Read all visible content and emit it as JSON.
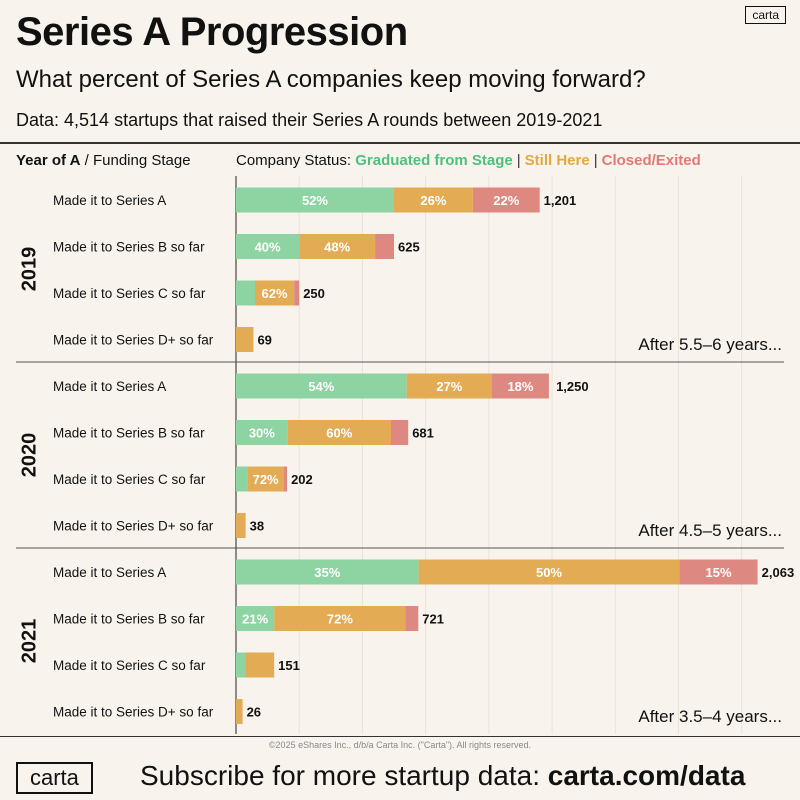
{
  "header": {
    "title": "Series A Progression",
    "subtitle": "What percent of Series A companies keep moving forward?",
    "data_note": "Data: 4,514 startups that raised their Series A rounds between 2019-2021",
    "logo_small": "carta",
    "col_year_bold": "Year of A",
    "col_year_rest": " / Funding Stage",
    "col_status_prefix": "Company Status:",
    "status_graduated": "Graduated from Stage",
    "status_still": "Still Here",
    "status_closed": "Closed/Exited",
    "separator": "|"
  },
  "footer": {
    "copyright": "©2025 eShares Inc., d/b/a Carta Inc. (\"Carta\"). All rights reserved.",
    "logo": "carta",
    "subscribe_prefix": "Subscribe for more startup data: ",
    "subscribe_link": "carta.com/data"
  },
  "colors": {
    "graduated": "#8ed3a2",
    "still": "#e2ab54",
    "closed": "#de8882",
    "grid": "#e9e2d6",
    "divider": "#555555",
    "axis": "#222222"
  },
  "chart_data": {
    "type": "bar",
    "orientation": "horizontal",
    "stacked": true,
    "series_names": [
      "Graduated from Stage",
      "Still Here",
      "Closed/Exited"
    ],
    "x_max": 2100,
    "groups": [
      {
        "year": "2019",
        "note": "After 5.5–6 years...",
        "rows": [
          {
            "label": "Made it to Series A",
            "total": 1201,
            "total_label": "1,201",
            "pct": [
              52,
              26,
              22
            ],
            "pct_labels": [
              "52%",
              "26%",
              "22%"
            ]
          },
          {
            "label": "Made it to Series B so far",
            "total": 625,
            "total_label": "625",
            "pct": [
              40,
              48,
              12
            ],
            "pct_labels": [
              "40%",
              "48%",
              ""
            ]
          },
          {
            "label": "Made it to Series C so far",
            "total": 250,
            "total_label": "250",
            "pct": [
              30,
              62,
              8
            ],
            "pct_labels": [
              "",
              "62%",
              ""
            ]
          },
          {
            "label": "Made it to Series D+ so far",
            "total": 69,
            "total_label": "69",
            "pct": [
              0,
              100,
              0
            ],
            "pct_labels": [
              "",
              "",
              ""
            ]
          }
        ]
      },
      {
        "year": "2020",
        "note": "After 4.5–5 years...",
        "rows": [
          {
            "label": "Made it to Series A",
            "total": 1250,
            "total_label": "1,250",
            "pct": [
              54,
              27,
              18
            ],
            "pct_labels": [
              "54%",
              "27%",
              "18%"
            ]
          },
          {
            "label": "Made it to Series B so far",
            "total": 681,
            "total_label": "681",
            "pct": [
              30,
              60,
              10
            ],
            "pct_labels": [
              "30%",
              "60%",
              ""
            ]
          },
          {
            "label": "Made it to Series C so far",
            "total": 202,
            "total_label": "202",
            "pct": [
              22,
              72,
              6
            ],
            "pct_labels": [
              "",
              "72%",
              ""
            ]
          },
          {
            "label": "Made it to Series D+ so far",
            "total": 38,
            "total_label": "38",
            "pct": [
              0,
              100,
              0
            ],
            "pct_labels": [
              "",
              "",
              ""
            ]
          }
        ]
      },
      {
        "year": "2021",
        "note": "After 3.5–4 years...",
        "rows": [
          {
            "label": "Made it to Series A",
            "total": 2063,
            "total_label": "2,063",
            "pct": [
              35,
              50,
              15
            ],
            "pct_labels": [
              "35%",
              "50%",
              "15%"
            ]
          },
          {
            "label": "Made it to Series B so far",
            "total": 721,
            "total_label": "721",
            "pct": [
              21,
              72,
              7
            ],
            "pct_labels": [
              "21%",
              "72%",
              ""
            ]
          },
          {
            "label": "Made it to Series C so far",
            "total": 151,
            "total_label": "151",
            "pct": [
              25,
              75,
              0
            ],
            "pct_labels": [
              "",
              "",
              ""
            ]
          },
          {
            "label": "Made it to Series D+ so far",
            "total": 26,
            "total_label": "26",
            "pct": [
              0,
              100,
              0
            ],
            "pct_labels": [
              "",
              "",
              ""
            ]
          }
        ]
      }
    ]
  }
}
